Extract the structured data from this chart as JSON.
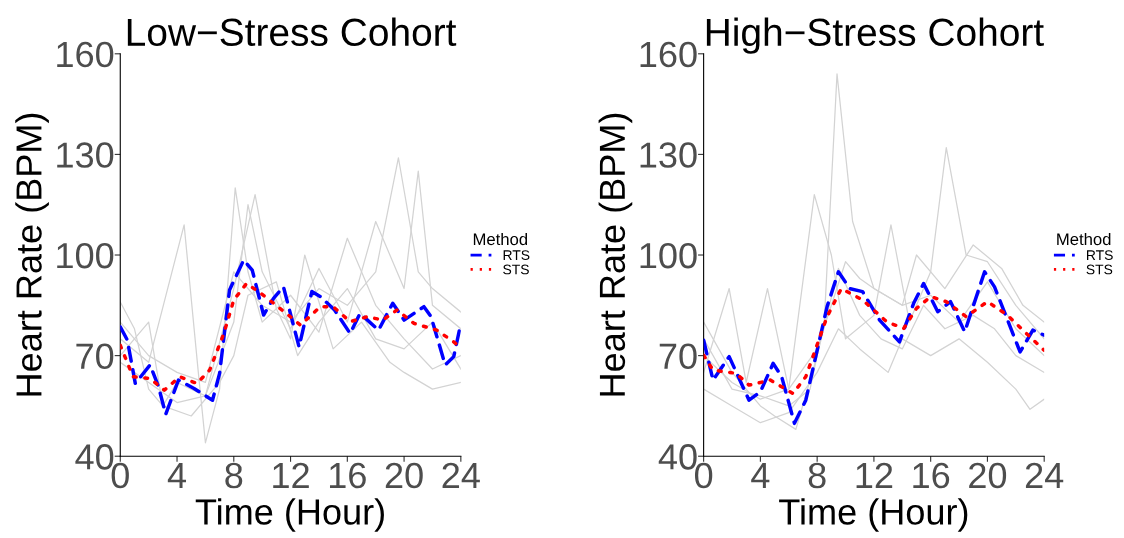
{
  "chart_data": [
    {
      "type": "line",
      "title": "Low−Stress Cohort",
      "xlabel": "Time (Hour)",
      "ylabel": "Heart Rate (BPM)",
      "legend_title": "Method",
      "legend": "right",
      "xlim": [
        0,
        24
      ],
      "xticks": [
        0,
        4,
        8,
        12,
        16,
        20,
        24
      ],
      "ylim": [
        40,
        160
      ],
      "yticks": [
        40,
        70,
        100,
        130,
        160
      ],
      "grid": false,
      "series": [
        {
          "color": "#d3d3d3",
          "line_style": "solid",
          "x": [
            0,
            2,
            4,
            6,
            8,
            10,
            12,
            14,
            16,
            18,
            19.6,
            21,
            22,
            24
          ],
          "values": [
            80,
            70,
            65,
            62,
            95,
            85,
            80,
            90,
            85,
            95,
            129,
            95,
            90,
            83
          ]
        },
        {
          "color": "#d3d3d3",
          "line_style": "solid",
          "x": [
            0,
            2,
            4.5,
            5.5,
            6,
            7,
            8.1,
            9,
            10,
            12,
            14,
            16,
            18,
            20,
            22,
            24
          ],
          "values": [
            75,
            68,
            109,
            65,
            44,
            60,
            120,
            95,
            80,
            88,
            77,
            105,
            85,
            75,
            66,
            70
          ]
        },
        {
          "color": "#d3d3d3",
          "line_style": "solid",
          "x": [
            0,
            2,
            4,
            6,
            8,
            9,
            10,
            12,
            14,
            16,
            18,
            20,
            21,
            22,
            24
          ],
          "values": [
            68,
            62,
            56,
            58,
            80,
            115,
            95,
            78,
            96,
            80,
            110,
            90,
            125,
            85,
            78
          ]
        },
        {
          "color": "#d3d3d3",
          "line_style": "solid",
          "x": [
            0,
            1,
            2,
            3,
            4,
            6,
            8,
            9.5,
            11,
            12,
            13,
            15,
            17,
            19,
            20,
            22,
            24
          ],
          "values": [
            86,
            78,
            60,
            55,
            62,
            58,
            90,
            118,
            84,
            75,
            100,
            72,
            80,
            68,
            65,
            60,
            62
          ]
        },
        {
          "color": "#d3d3d3",
          "line_style": "solid",
          "x": [
            0,
            2,
            3,
            5,
            7,
            8,
            9,
            11,
            12.5,
            14,
            16,
            18,
            20,
            22,
            24
          ],
          "values": [
            70,
            80,
            55,
            52,
            62,
            70,
            88,
            92,
            70,
            80,
            90,
            75,
            72,
            80,
            66
          ]
        },
        {
          "name": "RTS",
          "color": "#0000ff",
          "line_style": "dashed",
          "x": [
            0,
            0.5,
            1.06,
            2.1,
            2.7,
            3.2,
            4.1,
            5.2,
            6.5,
            7.0,
            7.7,
            8.7,
            9.3,
            10.1,
            10.8,
            11.5,
            12.6,
            13.5,
            14.1,
            15.1,
            16.2,
            16.9,
            18.2,
            19.2,
            20.0,
            21.4,
            21.9,
            22.9,
            23.5,
            23.9
          ],
          "values": [
            78.6,
            74.6,
            61.7,
            67.2,
            60.7,
            52.5,
            62.7,
            60.2,
            56.7,
            64.7,
            89.6,
            98.5,
            95.5,
            82.1,
            87.1,
            90.5,
            72.6,
            89.1,
            87.6,
            83.6,
            76.6,
            82.6,
            77.6,
            85.6,
            80.6,
            84.6,
            81.6,
            67.2,
            69.7,
            77.6
          ]
        },
        {
          "name": "STS",
          "color": "#ff0000",
          "line_style": "dotted",
          "x": [
            0,
            0.9,
            2.1,
            3.1,
            4.2,
            5.4,
            6.3,
            7.3,
            8.0,
            8.9,
            9.9,
            10.8,
            11.7,
            12.7,
            14.1,
            15.0,
            16.2,
            17.4,
            18.5,
            19.5,
            20.7,
            22.3,
            23.5,
            23.9
          ],
          "values": [
            73.1,
            63.7,
            63.2,
            59.7,
            63.7,
            61.7,
            65.7,
            76.6,
            86.6,
            91.5,
            88.6,
            85.6,
            82.6,
            79.1,
            84.6,
            84.6,
            80.1,
            81.6,
            80.6,
            83.6,
            79.6,
            77.6,
            74.1,
            72.6
          ]
        }
      ]
    },
    {
      "type": "line",
      "title": "High−Stress Cohort",
      "xlabel": "Time (Hour)",
      "ylabel": "Heart Rate (BPM)",
      "legend_title": "Method",
      "legend": "right",
      "xlim": [
        0,
        24
      ],
      "xticks": [
        0,
        4,
        8,
        12,
        16,
        20,
        24
      ],
      "ylim": [
        40,
        160
      ],
      "yticks": [
        40,
        70,
        100,
        130,
        160
      ],
      "grid": false,
      "series": [
        {
          "color": "#d3d3d3",
          "line_style": "solid",
          "x": [
            0,
            2,
            4,
            6,
            7.5,
            8.5,
            9.4,
            10.5,
            12,
            14,
            16,
            18,
            20,
            22,
            24
          ],
          "values": [
            75,
            60,
            58,
            55,
            60,
            80,
            154,
            110,
            90,
            85,
            88,
            80,
            92,
            78,
            70
          ]
        },
        {
          "color": "#d3d3d3",
          "line_style": "solid",
          "x": [
            0,
            2,
            4,
            6,
            7.8,
            9,
            10,
            12,
            13.2,
            14.5,
            16,
            17.1,
            18.5,
            20,
            22,
            24
          ],
          "values": [
            70,
            62,
            57,
            60,
            118,
            100,
            75,
            82,
            109,
            80,
            95,
            132,
            100,
            98,
            85,
            75
          ]
        },
        {
          "color": "#d3d3d3",
          "line_style": "solid",
          "x": [
            0,
            1.8,
            3,
            4.5,
            6,
            8,
            10,
            11,
            12,
            14,
            15,
            17,
            19,
            21,
            22.5,
            24
          ],
          "values": [
            65,
            90,
            62,
            90,
            60,
            72,
            98,
            93,
            90,
            85,
            100,
            90,
            103,
            96,
            85,
            80
          ]
        },
        {
          "color": "#d3d3d3",
          "line_style": "solid",
          "x": [
            0,
            2,
            4,
            6,
            8,
            9.5,
            11,
            13,
            14,
            16,
            18,
            20,
            22,
            23,
            24
          ],
          "values": [
            60,
            55,
            50,
            53,
            65,
            78,
            72,
            65,
            75,
            70,
            75,
            68,
            60,
            54,
            57
          ]
        },
        {
          "color": "#d3d3d3",
          "line_style": "solid",
          "x": [
            0,
            2,
            4,
            5,
            6.5,
            8,
            9.5,
            11,
            12.5,
            14,
            15.5,
            17,
            19,
            20.5,
            22,
            24
          ],
          "values": [
            80,
            65,
            55,
            52,
            48,
            70,
            96,
            82,
            75,
            72,
            85,
            78,
            82,
            78,
            70,
            65
          ]
        },
        {
          "name": "RTS",
          "color": "#0000ff",
          "line_style": "dashed",
          "x": [
            0,
            0.66,
            1.8,
            3.2,
            4.0,
            4.9,
            5.5,
            6.4,
            7.2,
            8.7,
            9.5,
            10.3,
            11.2,
            12.4,
            13.8,
            14.8,
            15.5,
            16.5,
            17.4,
            18.4,
            19.8,
            20.5,
            22.3,
            23.2,
            24
          ],
          "values": [
            74.6,
            62.7,
            69.7,
            56.7,
            59.2,
            67.7,
            63.7,
            49.8,
            56.7,
            84.6,
            95.0,
            90.0,
            89.1,
            80.6,
            74.1,
            85.6,
            91.5,
            83.1,
            86.1,
            77.1,
            95.0,
            90.5,
            71.1,
            77.6,
            76.1
          ]
        },
        {
          "name": "STS",
          "color": "#ff0000",
          "line_style": "dotted",
          "x": [
            0,
            0.66,
            2.3,
            3.2,
            4.7,
            6.3,
            7.2,
            8.7,
            9.7,
            11.2,
            12.9,
            14.1,
            15.0,
            16.0,
            17.1,
            18.5,
            20.0,
            21.4,
            22.5,
            24
          ],
          "values": [
            70.1,
            65.7,
            64.7,
            61.2,
            62.7,
            58.7,
            63.7,
            81.6,
            90.0,
            86.6,
            80.1,
            78.1,
            84.1,
            87.6,
            86.1,
            81.6,
            86.1,
            82.1,
            77.6,
            71.6
          ]
        }
      ]
    }
  ]
}
